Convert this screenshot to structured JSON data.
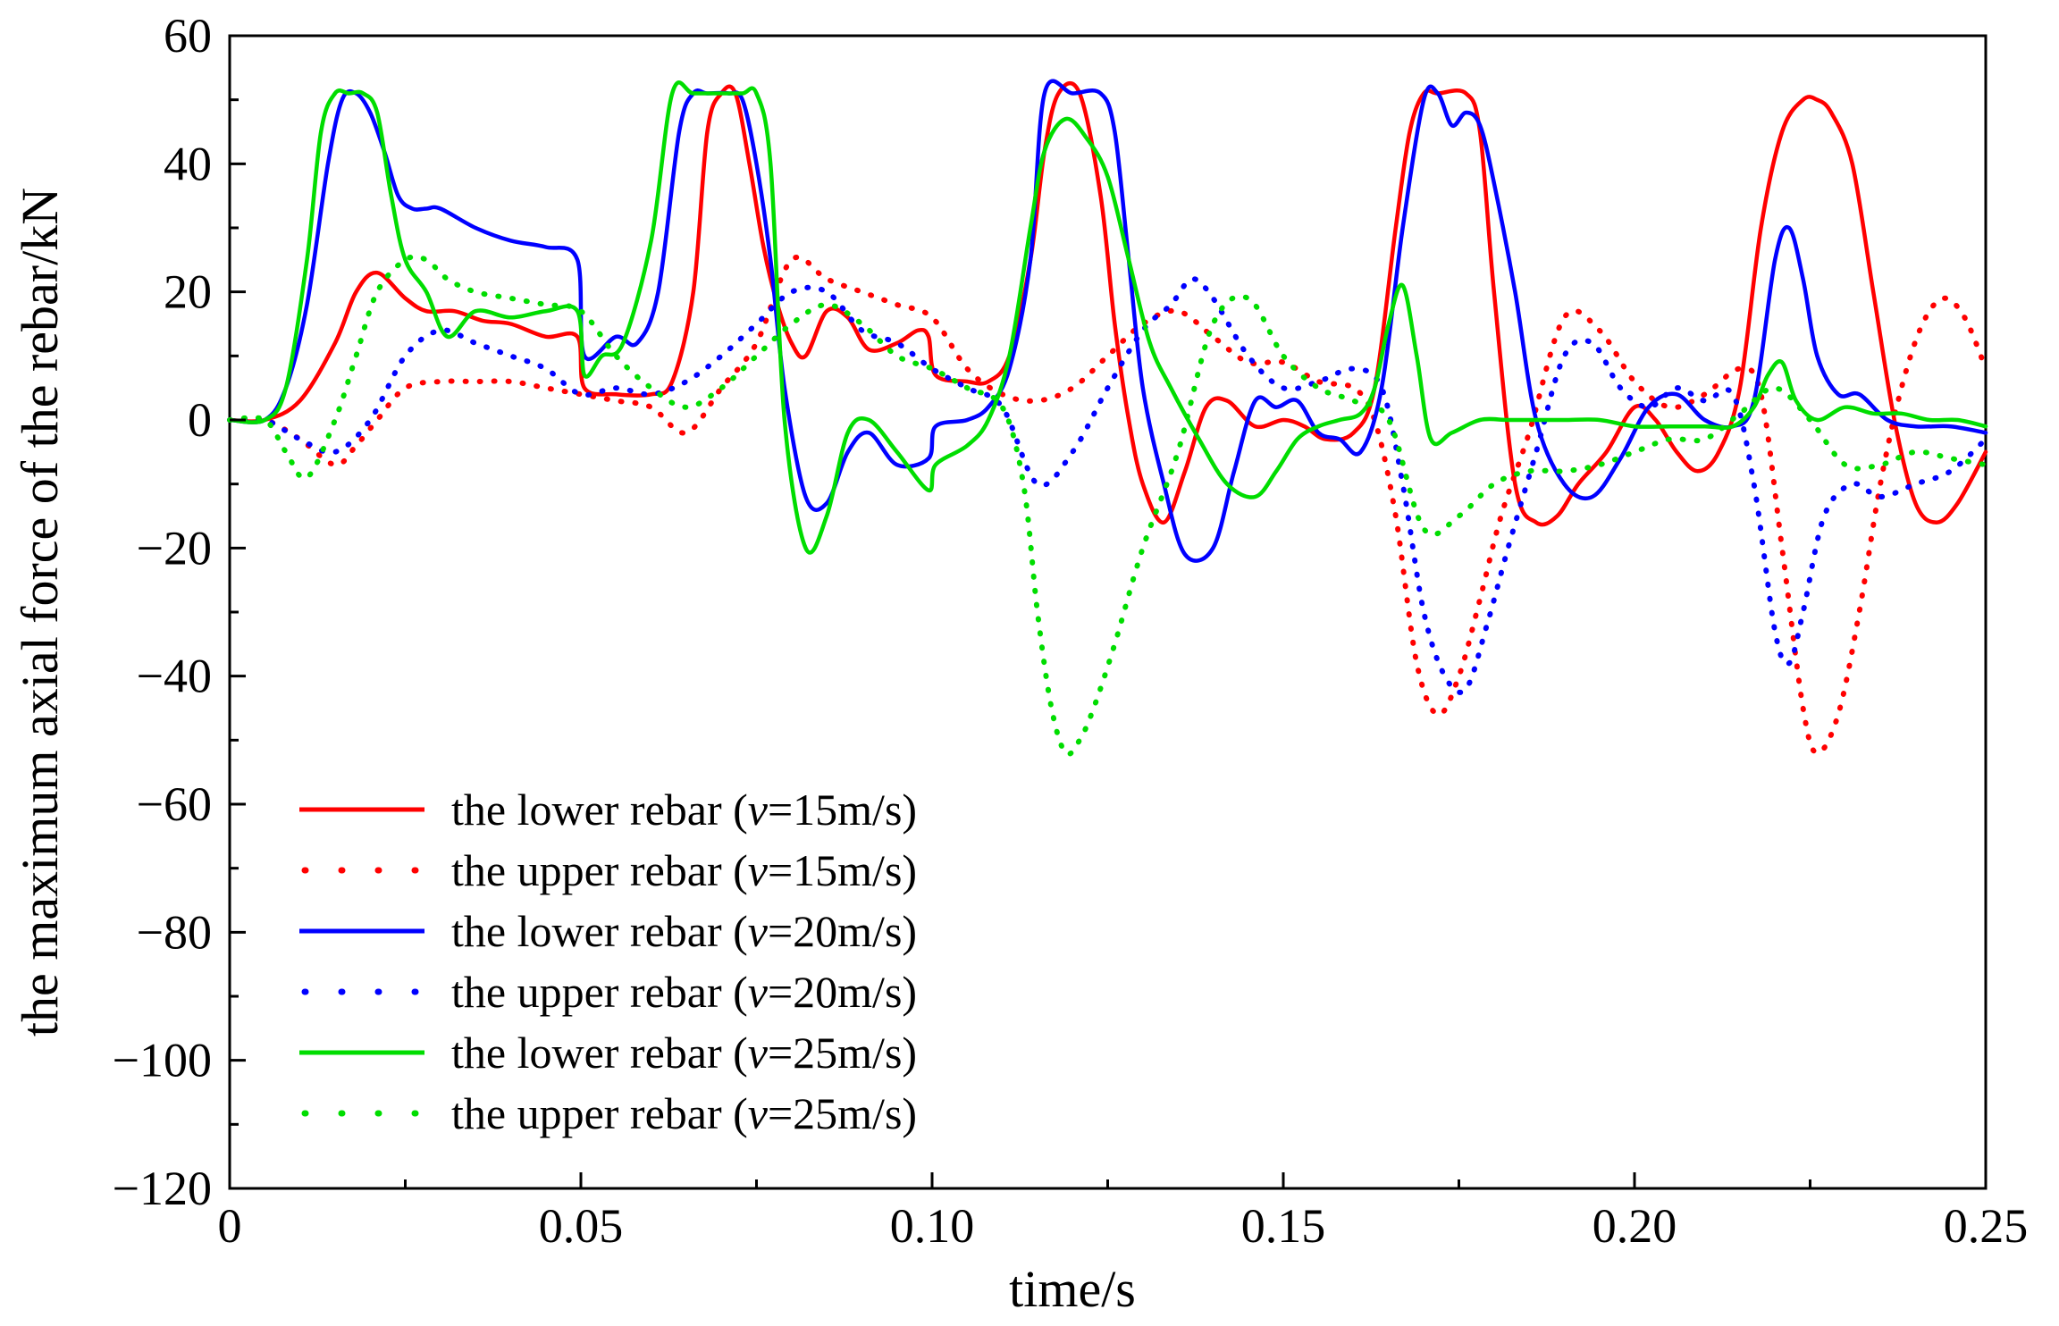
{
  "chart_data": {
    "type": "line",
    "title": "",
    "xlabel": "time/s",
    "ylabel": "the maximum axial force of the rebar/kN",
    "xlim": [
      0,
      0.25
    ],
    "ylim": [
      -120,
      60
    ],
    "xticks": [
      0,
      0.05,
      0.1,
      0.15,
      0.2,
      0.25
    ],
    "xtick_labels": [
      "0",
      "0.05",
      "0.10",
      "0.15",
      "0.20",
      "0.25"
    ],
    "yticks": [
      60,
      40,
      20,
      0,
      -20,
      -40,
      -60,
      -80,
      -100,
      -120
    ],
    "ytick_labels": [
      "60",
      "40",
      "20",
      "0",
      "−20",
      "−40",
      "−60",
      "−80",
      "−100",
      "−120"
    ],
    "grid": false,
    "legend_position": "lower-left",
    "series": [
      {
        "name": "the lower rebar (v=15m/s)",
        "legend_prefix": "the lower rebar (",
        "legend_var": "v",
        "legend_suffix": "=15m/s)",
        "color": "#ff0000",
        "style": "solid",
        "x": [
          0,
          0.005,
          0.01,
          0.015,
          0.018,
          0.021,
          0.025,
          0.028,
          0.032,
          0.036,
          0.04,
          0.045,
          0.0495,
          0.0505,
          0.055,
          0.06,
          0.063,
          0.066,
          0.068,
          0.07,
          0.072,
          0.074,
          0.076,
          0.078,
          0.08,
          0.082,
          0.085,
          0.088,
          0.091,
          0.095,
          0.098,
          0.0995,
          0.1005,
          0.105,
          0.108,
          0.111,
          0.114,
          0.116,
          0.118,
          0.121,
          0.124,
          0.126,
          0.128,
          0.13,
          0.133,
          0.136,
          0.139,
          0.142,
          0.146,
          0.15,
          0.153,
          0.156,
          0.16,
          0.163,
          0.166,
          0.168,
          0.17,
          0.172,
          0.176,
          0.178,
          0.18,
          0.183,
          0.186,
          0.189,
          0.192,
          0.196,
          0.2,
          0.203,
          0.206,
          0.209,
          0.212,
          0.215,
          0.218,
          0.221,
          0.224,
          0.226,
          0.228,
          0.231,
          0.234,
          0.237,
          0.24,
          0.243,
          0.246,
          0.25
        ],
        "y": [
          0,
          0,
          3,
          12,
          20,
          23,
          19,
          17,
          17,
          15.5,
          15,
          13,
          13,
          5,
          4,
          4,
          6,
          20,
          45,
          51,
          51,
          40,
          27,
          18,
          12,
          10,
          17,
          16,
          11,
          12,
          14,
          13,
          7,
          6,
          6,
          10,
          25,
          42,
          51,
          51,
          35,
          15,
          0,
          -10,
          -16,
          -8,
          2,
          3,
          -1,
          0,
          -1,
          -3,
          -2,
          5,
          30,
          45,
          51,
          51,
          51,
          45,
          20,
          -10,
          -16,
          -15,
          -10,
          -5,
          2,
          0,
          -5,
          -8,
          -5,
          5,
          30,
          45,
          50,
          50,
          48,
          40,
          20,
          0,
          -13,
          -16,
          -13,
          -5
        ]
      },
      {
        "name": "the upper rebar (v=15m/s)",
        "legend_prefix": "the upper rebar (",
        "legend_var": "v",
        "legend_suffix": "=15m/s)",
        "color": "#ff0000",
        "style": "dotted",
        "x": [
          0,
          0.005,
          0.01,
          0.015,
          0.018,
          0.021,
          0.025,
          0.03,
          0.035,
          0.04,
          0.045,
          0.05,
          0.055,
          0.06,
          0.065,
          0.07,
          0.075,
          0.08,
          0.085,
          0.09,
          0.095,
          0.1,
          0.105,
          0.11,
          0.115,
          0.12,
          0.125,
          0.13,
          0.135,
          0.14,
          0.145,
          0.15,
          0.155,
          0.16,
          0.163,
          0.166,
          0.169,
          0.172,
          0.175,
          0.178,
          0.181,
          0.185,
          0.19,
          0.195,
          0.2,
          0.205,
          0.21,
          0.215,
          0.218,
          0.221,
          0.224,
          0.226,
          0.229,
          0.232,
          0.235,
          0.238,
          0.241,
          0.244,
          0.247,
          0.25
        ],
        "y": [
          0,
          0,
          -3,
          -7,
          -4,
          0,
          5,
          6,
          6,
          6,
          5,
          4,
          3,
          2,
          -2,
          5,
          12,
          25,
          22,
          20,
          18,
          16,
          8,
          4,
          3,
          5,
          10,
          15,
          17,
          13,
          9,
          9,
          6,
          5,
          0,
          -15,
          -38,
          -46,
          -40,
          -28,
          -15,
          -2,
          16,
          14,
          6,
          2,
          4,
          8,
          4,
          -20,
          -45,
          -52,
          -46,
          -30,
          -10,
          5,
          15,
          19,
          16,
          8
        ]
      },
      {
        "name": "the lower rebar (v=20m/s)",
        "legend_prefix": "the lower rebar (",
        "legend_var": "v",
        "legend_suffix": "=20m/s)",
        "color": "#0000ff",
        "style": "solid",
        "x": [
          0,
          0.005,
          0.008,
          0.011,
          0.014,
          0.016,
          0.018,
          0.02,
          0.022,
          0.024,
          0.026,
          0.028,
          0.03,
          0.035,
          0.04,
          0.045,
          0.0495,
          0.0505,
          0.055,
          0.058,
          0.061,
          0.064,
          0.066,
          0.068,
          0.071,
          0.073,
          0.075,
          0.077,
          0.079,
          0.082,
          0.085,
          0.088,
          0.091,
          0.095,
          0.0995,
          0.1005,
          0.105,
          0.108,
          0.111,
          0.114,
          0.116,
          0.12,
          0.124,
          0.126,
          0.128,
          0.13,
          0.133,
          0.136,
          0.14,
          0.143,
          0.146,
          0.149,
          0.152,
          0.155,
          0.158,
          0.161,
          0.164,
          0.167,
          0.17,
          0.172,
          0.174,
          0.176,
          0.178,
          0.18,
          0.183,
          0.186,
          0.19,
          0.194,
          0.198,
          0.202,
          0.206,
          0.21,
          0.214,
          0.217,
          0.22,
          0.222,
          0.224,
          0.226,
          0.229,
          0.232,
          0.236,
          0.24,
          0.245,
          0.25
        ],
        "y": [
          0,
          0,
          5,
          18,
          40,
          50,
          51,
          48,
          42,
          35,
          33,
          33,
          33,
          30,
          28,
          27,
          25,
          10,
          13,
          12,
          20,
          45,
          51,
          51,
          51,
          50,
          40,
          25,
          5,
          -12,
          -13,
          -5,
          -2,
          -7,
          -6,
          -1,
          0,
          2,
          8,
          25,
          51,
          51,
          51,
          45,
          25,
          5,
          -10,
          -21,
          -20,
          -8,
          3,
          2,
          3,
          -2,
          -3,
          -5,
          5,
          30,
          50,
          51,
          46,
          48,
          46,
          37,
          20,
          0,
          -10,
          -12,
          -6,
          2,
          4,
          0,
          -1,
          3,
          25,
          30,
          22,
          10,
          4,
          4,
          0,
          -1,
          -1,
          -2
        ]
      },
      {
        "name": "the upper rebar (v=20m/s)",
        "legend_prefix": "the upper rebar (",
        "legend_var": "v",
        "legend_suffix": "=20m/s)",
        "color": "#0000ff",
        "style": "dotted",
        "x": [
          0,
          0.005,
          0.01,
          0.015,
          0.02,
          0.025,
          0.03,
          0.035,
          0.04,
          0.045,
          0.05,
          0.055,
          0.06,
          0.065,
          0.07,
          0.075,
          0.08,
          0.085,
          0.09,
          0.095,
          0.1,
          0.105,
          0.11,
          0.115,
          0.12,
          0.125,
          0.13,
          0.134,
          0.137,
          0.14,
          0.145,
          0.15,
          0.155,
          0.16,
          0.164,
          0.167,
          0.17,
          0.173,
          0.176,
          0.179,
          0.182,
          0.186,
          0.19,
          0.194,
          0.198,
          0.202,
          0.206,
          0.21,
          0.214,
          0.217,
          0.22,
          0.222,
          0.224,
          0.227,
          0.231,
          0.235,
          0.24,
          0.245,
          0.25
        ],
        "y": [
          0,
          0,
          -3,
          -5,
          0,
          10,
          14,
          12,
          10,
          8,
          4,
          5,
          4,
          6,
          10,
          15,
          20,
          20,
          14,
          12,
          8,
          5,
          2,
          -10,
          -5,
          5,
          14,
          18,
          22,
          19,
          10,
          5,
          6,
          8,
          5,
          -10,
          -30,
          -40,
          -42,
          -32,
          -20,
          -5,
          10,
          12,
          5,
          2,
          5,
          3,
          4,
          -10,
          -33,
          -38,
          -30,
          -15,
          -10,
          -12,
          -10,
          -8,
          -3
        ]
      },
      {
        "name": "the lower rebar (v=25m/s)",
        "legend_prefix": "the lower rebar (",
        "legend_var": "v",
        "legend_suffix": "=25m/s)",
        "color": "#00dd00",
        "style": "solid",
        "x": [
          0,
          0.005,
          0.008,
          0.011,
          0.013,
          0.015,
          0.017,
          0.019,
          0.021,
          0.023,
          0.025,
          0.028,
          0.031,
          0.035,
          0.04,
          0.045,
          0.0495,
          0.0505,
          0.053,
          0.056,
          0.06,
          0.063,
          0.066,
          0.07,
          0.073,
          0.075,
          0.077,
          0.079,
          0.082,
          0.085,
          0.088,
          0.091,
          0.095,
          0.0995,
          0.1005,
          0.105,
          0.108,
          0.111,
          0.114,
          0.116,
          0.119,
          0.122,
          0.125,
          0.128,
          0.131,
          0.134,
          0.138,
          0.142,
          0.146,
          0.149,
          0.152,
          0.155,
          0.158,
          0.161,
          0.163,
          0.165,
          0.167,
          0.169,
          0.171,
          0.174,
          0.178,
          0.182,
          0.186,
          0.19,
          0.195,
          0.2,
          0.205,
          0.21,
          0.214,
          0.217,
          0.219,
          0.221,
          0.223,
          0.226,
          0.23,
          0.234,
          0.238,
          0.242,
          0.246,
          0.25
        ],
        "y": [
          0,
          0,
          5,
          25,
          45,
          51,
          51,
          51,
          48,
          35,
          25,
          20,
          13,
          17,
          16,
          17,
          17,
          7,
          10,
          12,
          28,
          51,
          51,
          51,
          51,
          51,
          40,
          0,
          -20,
          -15,
          -2,
          0,
          -5,
          -11,
          -7,
          -4,
          0,
          10,
          30,
          42,
          47,
          44,
          38,
          25,
          12,
          5,
          -3,
          -10,
          -12,
          -8,
          -3,
          -1,
          0,
          1,
          5,
          15,
          21,
          10,
          -3,
          -2,
          0,
          0,
          0,
          0,
          0,
          -1,
          -1,
          -1,
          -1,
          2,
          7,
          9,
          3,
          0,
          2,
          1,
          1,
          0,
          0,
          -1
        ]
      },
      {
        "name": "the upper rebar (v=25m/s)",
        "legend_prefix": "the upper rebar (",
        "legend_var": "v",
        "legend_suffix": "=25m/s)",
        "color": "#00dd00",
        "style": "dotted",
        "x": [
          0,
          0.005,
          0.008,
          0.011,
          0.015,
          0.018,
          0.021,
          0.025,
          0.028,
          0.031,
          0.035,
          0.04,
          0.045,
          0.05,
          0.055,
          0.06,
          0.065,
          0.07,
          0.075,
          0.08,
          0.085,
          0.09,
          0.095,
          0.1,
          0.105,
          0.11,
          0.113,
          0.115,
          0.117,
          0.119,
          0.121,
          0.123,
          0.126,
          0.13,
          0.135,
          0.14,
          0.145,
          0.15,
          0.155,
          0.16,
          0.165,
          0.17,
          0.175,
          0.18,
          0.185,
          0.19,
          0.195,
          0.2,
          0.205,
          0.21,
          0.215,
          0.22,
          0.225,
          0.23,
          0.235,
          0.24,
          0.245,
          0.25
        ],
        "y": [
          0,
          0,
          -5,
          -9,
          0,
          10,
          20,
          25,
          25,
          22,
          20,
          19,
          18,
          17,
          10,
          5,
          2,
          5,
          10,
          15,
          18,
          15,
          10,
          8,
          5,
          2,
          -10,
          -30,
          -45,
          -52,
          -50,
          -45,
          -35,
          -20,
          -5,
          15,
          19,
          10,
          5,
          3,
          0,
          -17,
          -15,
          -10,
          -8,
          -8,
          -7,
          -5,
          -3,
          -3,
          1,
          5,
          0,
          -7,
          -7,
          -5,
          -6,
          -7
        ]
      }
    ]
  }
}
